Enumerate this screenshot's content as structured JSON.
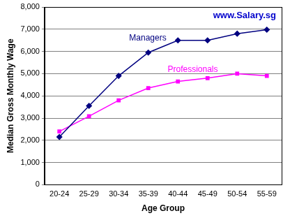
{
  "chart_data": {
    "type": "line",
    "x_label": "Age Group",
    "y_label": "Median Gross Monthly Wage",
    "annotations": [
      {
        "text": "www.Salary.sg"
      }
    ],
    "categories": [
      "20-24",
      "25-29",
      "30-34",
      "35-39",
      "40-44",
      "45-49",
      "50-54",
      "55-59"
    ],
    "series": [
      {
        "name": "Managers",
        "color": "#000080",
        "marker": "diamond",
        "values": [
          2150,
          3550,
          4900,
          5950,
          6500,
          6500,
          6800,
          6980
        ]
      },
      {
        "name": "Professionals",
        "color": "#ff00ff",
        "marker": "square",
        "values": [
          2400,
          3080,
          3800,
          4350,
          4650,
          4800,
          5000,
          4900
        ]
      }
    ],
    "ylim": [
      0,
      8000
    ],
    "yticks": [
      0,
      {
        "value": 1000,
        "label": "1,000"
      },
      {
        "value": 2000,
        "label": "2,000"
      },
      {
        "value": 3000,
        "label": "3,000"
      },
      {
        "value": 4000,
        "label": "4,000"
      },
      {
        "value": 5000,
        "label": "5,000"
      },
      {
        "value": 6000,
        "label": "6,000"
      },
      {
        "value": 7000,
        "label": "7,000"
      },
      {
        "value": 8000,
        "label": "8,000"
      }
    ],
    "grid": true
  }
}
